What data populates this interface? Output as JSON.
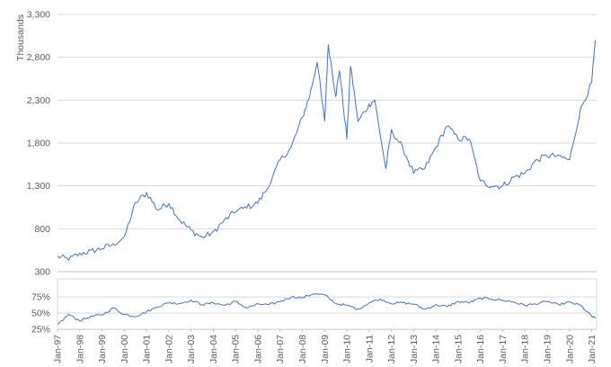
{
  "chart_data": [
    {
      "type": "line",
      "title": "",
      "xlabel": "",
      "ylabel": "Thousands",
      "ylim": [
        300,
        3300
      ],
      "y_ticks": [
        "300",
        "800",
        "1,300",
        "1,800",
        "2,300",
        "2,800",
        "3,300"
      ],
      "grid": true,
      "legend": "none",
      "color": "#4472c4",
      "x": [
        "Jan-97",
        "Jul-97",
        "Jan-98",
        "Jul-98",
        "Jan-99",
        "Jul-99",
        "Jan-00",
        "Jul-00",
        "Jan-01",
        "Jul-01",
        "Jan-02",
        "Jul-02",
        "Jan-03",
        "Jul-03",
        "Jan-04",
        "Jul-04",
        "Jan-05",
        "Jul-05",
        "Jan-06",
        "Jul-06",
        "Jan-07",
        "Jul-07",
        "Jan-08",
        "May-08",
        "Sep-08",
        "Jan-09",
        "Mar-09",
        "Jul-09",
        "Sep-09",
        "Jan-10",
        "Mar-10",
        "Jul-10",
        "Jan-11",
        "Apr-11",
        "Oct-11",
        "Jan-12",
        "Jul-12",
        "Jan-13",
        "Jul-13",
        "Jan-14",
        "Jul-14",
        "Jan-15",
        "Jul-15",
        "Jan-16",
        "Jul-16",
        "Jan-17",
        "Jul-17",
        "Jan-18",
        "Jul-18",
        "Jan-19",
        "Jul-19",
        "Jan-20",
        "Jul-20",
        "Jan-21",
        "Mar-21"
      ],
      "values": [
        480,
        440,
        510,
        540,
        570,
        620,
        700,
        1100,
        1220,
        1020,
        1100,
        900,
        780,
        700,
        760,
        900,
        1000,
        1050,
        1100,
        1300,
        1600,
        1750,
        2100,
        2350,
        2750,
        2050,
        2950,
        2350,
        2650,
        1850,
        2700,
        2050,
        2250,
        2300,
        1500,
        1950,
        1750,
        1450,
        1500,
        1750,
        2000,
        1850,
        1850,
        1350,
        1300,
        1300,
        1400,
        1450,
        1600,
        1650,
        1650,
        1600,
        2200,
        2500,
        3000
      ]
    },
    {
      "type": "line",
      "title": "",
      "xlabel": "",
      "ylabel": "",
      "ylim": [
        25,
        85
      ],
      "y_ticks": [
        "25%",
        "50%",
        "75%"
      ],
      "grid": true,
      "legend": "none",
      "color": "#4472c4",
      "x": [
        "Jan-97",
        "Jul-97",
        "Jan-98",
        "Jul-98",
        "Jan-99",
        "Jul-99",
        "Jan-00",
        "Jul-00",
        "Jan-01",
        "Jul-01",
        "Jan-02",
        "Jul-02",
        "Jan-03",
        "Jul-03",
        "Jan-04",
        "Jul-04",
        "Jan-05",
        "Jul-05",
        "Jan-06",
        "Jul-06",
        "Jan-07",
        "Jul-07",
        "Jan-08",
        "Jul-08",
        "Jan-09",
        "Jul-09",
        "Jan-10",
        "Jul-10",
        "Jan-11",
        "Jul-11",
        "Jan-12",
        "Jul-12",
        "Jan-13",
        "Jul-13",
        "Jan-14",
        "Jul-14",
        "Jan-15",
        "Jul-15",
        "Jan-16",
        "Jul-16",
        "Jan-17",
        "Jul-17",
        "Jan-18",
        "Jul-18",
        "Jan-19",
        "Jul-19",
        "Jan-20",
        "Jul-20",
        "Jan-21",
        "Mar-21"
      ],
      "values": [
        32,
        48,
        38,
        45,
        47,
        58,
        48,
        45,
        52,
        60,
        66,
        65,
        70,
        63,
        66,
        62,
        68,
        58,
        64,
        63,
        68,
        75,
        74,
        80,
        78,
        65,
        62,
        56,
        66,
        72,
        65,
        66,
        64,
        56,
        63,
        60,
        68,
        66,
        73,
        72,
        70,
        67,
        62,
        64,
        68,
        63,
        67,
        62,
        45,
        42
      ]
    }
  ],
  "x_tick_labels": [
    "Jan-97",
    "Jan-98",
    "Jan-99",
    "Jan-00",
    "Jan-01",
    "Jan-02",
    "Jan-03",
    "Jan-04",
    "Jan-05",
    "Jan-06",
    "Jan-07",
    "Jan-08",
    "Jan-09",
    "Jan-10",
    "Jan-11",
    "Jan-12",
    "Jan-13",
    "Jan-14",
    "Jan-15",
    "Jan-16",
    "Jan-17",
    "Jan-18",
    "Jan-19",
    "Jan-20",
    "Jan-21"
  ]
}
